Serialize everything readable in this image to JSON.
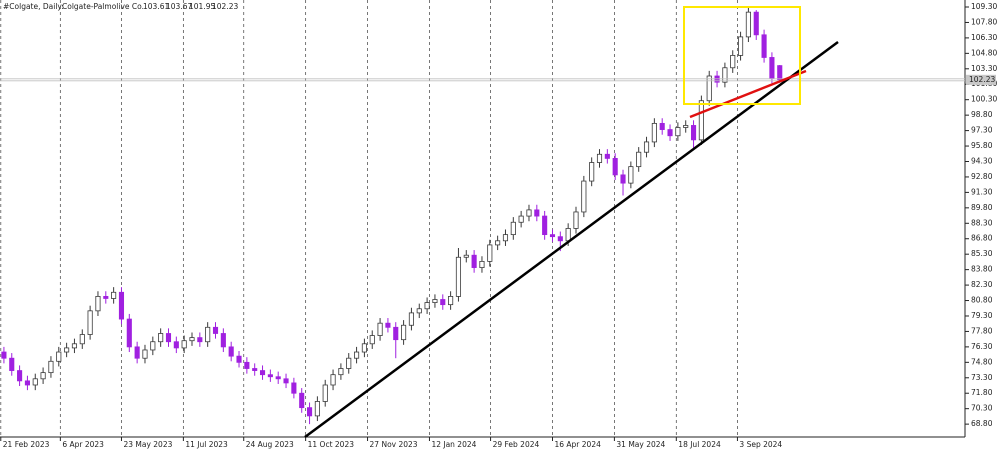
{
  "chart_data": {
    "type": "candlestick",
    "symbol": "#Colgate, Daily:",
    "title": "Colgate-Palmolive Co.",
    "ohlc": [
      [
        75.8,
        76.3,
        74.7,
        75.2
      ],
      [
        75.2,
        75.7,
        73.5,
        74.0
      ],
      [
        74.0,
        74.5,
        72.5,
        73.0
      ],
      [
        73.0,
        73.5,
        72.1,
        72.6
      ],
      [
        72.6,
        73.7,
        72.1,
        73.2
      ],
      [
        73.2,
        74.3,
        72.7,
        73.8
      ],
      [
        73.8,
        75.4,
        73.3,
        74.9
      ],
      [
        74.9,
        76.3,
        74.4,
        75.8
      ],
      [
        75.8,
        76.7,
        75.3,
        76.2
      ],
      [
        76.2,
        77.1,
        75.7,
        76.6
      ],
      [
        76.6,
        78.0,
        76.1,
        77.5
      ],
      [
        77.5,
        80.3,
        77.0,
        79.8
      ],
      [
        79.8,
        81.7,
        79.3,
        81.2
      ],
      [
        81.2,
        81.7,
        80.5,
        81.0
      ],
      [
        81.0,
        82.1,
        80.5,
        81.6
      ],
      [
        81.6,
        82.1,
        78.5,
        79.0
      ],
      [
        79.0,
        79.5,
        75.8,
        76.3
      ],
      [
        76.3,
        76.8,
        74.7,
        75.2
      ],
      [
        75.2,
        76.5,
        74.7,
        76.0
      ],
      [
        76.0,
        77.3,
        75.5,
        76.8
      ],
      [
        76.8,
        78.1,
        76.3,
        77.6
      ],
      [
        77.6,
        78.1,
        76.3,
        76.8
      ],
      [
        76.8,
        77.3,
        75.7,
        76.2
      ],
      [
        76.2,
        77.4,
        75.7,
        76.9
      ],
      [
        76.9,
        77.7,
        76.4,
        77.2
      ],
      [
        77.2,
        77.7,
        76.3,
        76.8
      ],
      [
        76.8,
        78.7,
        76.3,
        78.2
      ],
      [
        78.2,
        78.7,
        77.1,
        77.6
      ],
      [
        77.6,
        78.1,
        75.8,
        76.3
      ],
      [
        76.3,
        76.8,
        74.9,
        75.4
      ],
      [
        75.4,
        75.9,
        74.3,
        74.8
      ],
      [
        74.8,
        75.3,
        73.7,
        74.2
      ],
      [
        74.2,
        74.7,
        73.5,
        74.0
      ],
      [
        74.0,
        74.5,
        73.1,
        73.6
      ],
      [
        73.6,
        74.1,
        72.9,
        73.4
      ],
      [
        73.4,
        73.9,
        72.7,
        73.2
      ],
      [
        73.2,
        73.7,
        72.3,
        72.8
      ],
      [
        72.8,
        73.3,
        71.3,
        71.8
      ],
      [
        71.8,
        72.3,
        69.9,
        70.4
      ],
      [
        70.4,
        70.9,
        68.8,
        69.6
      ],
      [
        69.6,
        71.5,
        69.1,
        71.0
      ],
      [
        71.0,
        73.1,
        70.5,
        72.6
      ],
      [
        72.6,
        74.1,
        72.1,
        73.6
      ],
      [
        73.6,
        74.7,
        73.1,
        74.2
      ],
      [
        74.2,
        75.7,
        73.7,
        75.2
      ],
      [
        75.2,
        76.3,
        74.7,
        75.8
      ],
      [
        75.8,
        77.1,
        75.3,
        76.6
      ],
      [
        76.6,
        77.9,
        76.1,
        77.4
      ],
      [
        77.4,
        79.1,
        76.9,
        78.6
      ],
      [
        78.6,
        79.1,
        77.7,
        78.2
      ],
      [
        78.2,
        78.7,
        75.2,
        77.0
      ],
      [
        77.0,
        78.9,
        76.5,
        78.4
      ],
      [
        78.4,
        80.1,
        77.9,
        79.6
      ],
      [
        79.6,
        80.5,
        79.1,
        80.0
      ],
      [
        80.0,
        81.1,
        79.5,
        80.6
      ],
      [
        80.6,
        81.4,
        80.1,
        80.9
      ],
      [
        80.9,
        81.4,
        79.9,
        80.4
      ],
      [
        80.4,
        81.7,
        79.9,
        81.2
      ],
      [
        81.2,
        85.9,
        80.7,
        85.0
      ],
      [
        85.0,
        85.7,
        84.5,
        85.2
      ],
      [
        85.2,
        85.7,
        83.5,
        84.0
      ],
      [
        84.0,
        85.1,
        83.5,
        84.6
      ],
      [
        84.6,
        86.7,
        84.1,
        86.2
      ],
      [
        86.2,
        87.1,
        85.7,
        86.6
      ],
      [
        86.6,
        87.7,
        86.1,
        87.2
      ],
      [
        87.2,
        88.9,
        86.7,
        88.4
      ],
      [
        88.4,
        89.5,
        87.9,
        89.0
      ],
      [
        89.0,
        90.1,
        88.5,
        89.6
      ],
      [
        89.6,
        90.1,
        88.5,
        89.0
      ],
      [
        89.0,
        89.5,
        86.7,
        87.2
      ],
      [
        87.2,
        87.7,
        86.5,
        87.0
      ],
      [
        87.0,
        87.5,
        85.6,
        86.6
      ],
      [
        86.6,
        88.3,
        86.1,
        87.8
      ],
      [
        87.8,
        89.9,
        87.3,
        89.4
      ],
      [
        89.4,
        92.9,
        88.9,
        92.4
      ],
      [
        92.4,
        94.7,
        91.9,
        94.2
      ],
      [
        94.2,
        95.5,
        93.7,
        95.0
      ],
      [
        95.0,
        95.5,
        94.1,
        94.6
      ],
      [
        94.6,
        95.1,
        92.5,
        93.0
      ],
      [
        93.0,
        93.5,
        91.0,
        92.2
      ],
      [
        92.2,
        94.3,
        91.7,
        93.8
      ],
      [
        93.8,
        95.7,
        93.3,
        95.2
      ],
      [
        95.2,
        96.7,
        94.7,
        96.2
      ],
      [
        96.2,
        98.5,
        95.7,
        98.0
      ],
      [
        98.0,
        98.5,
        96.9,
        97.4
      ],
      [
        97.4,
        97.9,
        96.3,
        96.8
      ],
      [
        96.8,
        98.1,
        96.3,
        97.6
      ],
      [
        97.6,
        98.3,
        97.1,
        97.8
      ],
      [
        97.8,
        98.3,
        95.4,
        96.4
      ],
      [
        96.4,
        100.7,
        95.9,
        100.2
      ],
      [
        100.2,
        103.1,
        99.7,
        102.6
      ],
      [
        102.6,
        103.1,
        101.5,
        102.0
      ],
      [
        102.0,
        103.9,
        101.5,
        103.4
      ],
      [
        103.4,
        105.1,
        102.9,
        104.6
      ],
      [
        104.6,
        106.9,
        104.1,
        106.4
      ],
      [
        106.4,
        109.3,
        105.9,
        108.8
      ],
      [
        108.8,
        109.0,
        106.1,
        106.6
      ],
      [
        106.6,
        107.1,
        103.9,
        104.4
      ],
      [
        104.4,
        104.9,
        101.9,
        102.4
      ],
      [
        103.61,
        103.67,
        101.95,
        102.23
      ]
    ],
    "up_color": "#3a3a3a",
    "down_color": "#a020e0",
    "last_price": {
      "value": 102.23,
      "label": "102.23"
    },
    "xlim": [
      -0.5,
      122
    ],
    "xticks": [
      {
        "value": -0.4,
        "label": "21 Feb 2023"
      },
      {
        "value": 7.2,
        "label": "6 Apr 2023"
      },
      {
        "value": 15,
        "label": "23 May 2023"
      },
      {
        "value": 22.9,
        "label": "11 Jul 2023"
      },
      {
        "value": 30.6,
        "label": "24 Aug 2023"
      },
      {
        "value": 38.5,
        "label": "11 Oct 2023"
      },
      {
        "value": 46.4,
        "label": "27 Nov 2023"
      },
      {
        "value": 54.3,
        "label": "12 Jan 2024"
      },
      {
        "value": 62.1,
        "label": "29 Feb 2024"
      },
      {
        "value": 70,
        "label": "16 Apr 2024"
      },
      {
        "value": 77.9,
        "label": "31 May 2024"
      },
      {
        "value": 85.8,
        "label": "18 Jul 2024"
      },
      {
        "value": 93.6,
        "label": "3 Sep 2024"
      }
    ],
    "ylim": [
      67.55,
      109.98
    ],
    "yticks": [
      {
        "value": 109.3,
        "label": "109.30"
      },
      {
        "value": 107.8,
        "label": "107.80"
      },
      {
        "value": 106.3,
        "label": "106.30"
      },
      {
        "value": 104.8,
        "label": "104.80"
      },
      {
        "value": 103.3,
        "label": "103.30"
      },
      {
        "value": 101.8,
        "label": "101.80"
      },
      {
        "value": 100.3,
        "label": "100.30"
      },
      {
        "value": 98.8,
        "label": "98.80"
      },
      {
        "value": 97.3,
        "label": "97.30"
      },
      {
        "value": 95.8,
        "label": "95.80"
      },
      {
        "value": 94.3,
        "label": "94.30"
      },
      {
        "value": 92.8,
        "label": "92.80"
      },
      {
        "value": 91.3,
        "label": "91.30"
      },
      {
        "value": 89.8,
        "label": "89.80"
      },
      {
        "value": 88.3,
        "label": "88.30"
      },
      {
        "value": 86.8,
        "label": "86.80"
      },
      {
        "value": 85.3,
        "label": "85.30"
      },
      {
        "value": 83.8,
        "label": "83.80"
      },
      {
        "value": 82.3,
        "label": "82.30"
      },
      {
        "value": 80.8,
        "label": "80.80"
      },
      {
        "value": 79.3,
        "label": "79.30"
      },
      {
        "value": 77.8,
        "label": "77.80"
      },
      {
        "value": 76.3,
        "label": "76.30"
      },
      {
        "value": 74.8,
        "label": "74.80"
      },
      {
        "value": 73.3,
        "label": "73.30"
      },
      {
        "value": 71.8,
        "label": "71.80"
      },
      {
        "value": 70.3,
        "label": "70.30"
      },
      {
        "value": 68.8,
        "label": "68.80"
      }
    ],
    "grid": true
  }
}
